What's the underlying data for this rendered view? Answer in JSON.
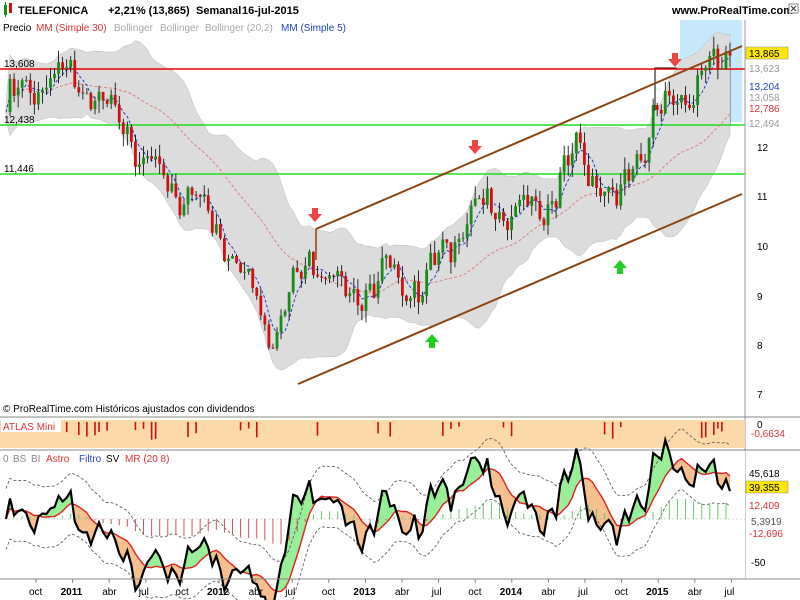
{
  "header": {
    "symbol": "TELEFONICA",
    "change": "+2,21% (13,865)",
    "period": "Semanal",
    "date": "16-jul-2015",
    "website": "www.ProRealTime.com"
  },
  "price_panel": {
    "tabs": [
      "Precio",
      "MM (Simple 30)",
      "Bollinger",
      "Bollinger",
      "Bollinger (20,2)",
      "MM (Simple 5)"
    ],
    "copyright": "© ProRealTime.com Históricos ajustados con dividendos",
    "left_levels": [
      "13,608",
      "12,438",
      "11,446"
    ],
    "right_tags": [
      "13,865",
      "13,623",
      "13,204",
      "13,058",
      "12,786",
      "12,494"
    ],
    "axis_labels": [
      "7",
      "8",
      "9",
      "10",
      "11",
      "12"
    ]
  },
  "atlas_panel": {
    "label": "ATLAS Mini",
    "value": "-0,6634",
    "zero": "0"
  },
  "osc_panel": {
    "tabs": [
      "0",
      "BS",
      "BI",
      "Astro",
      "Filtro",
      "SV",
      "MR (20 8)"
    ],
    "right_tags": [
      "45,618",
      "39,355",
      "12,409",
      "5,3919",
      "-12,696"
    ],
    "axis_labels": [
      "-50"
    ]
  },
  "x_axis": {
    "labels": [
      "oct",
      "2011",
      "abr",
      "jul",
      "oct",
      "2012",
      "abr",
      "jul",
      "oct",
      "2013",
      "abr",
      "jul",
      "oct",
      "2014",
      "abr",
      "jul",
      "oct",
      "2015",
      "abr",
      "jul"
    ]
  },
  "colors": {
    "candle_up": "#1a8a1a",
    "candle_down": "#cc1111",
    "ma30": "#e08080",
    "ma5": "#2244cc",
    "bollinger_fill": "#dcdcdc",
    "red_level": "#ee0000",
    "green_level": "#22dd22",
    "channel": "#8b4513",
    "highlight_box": "#c6e8fa",
    "atlas_bg": "#fcd9a8",
    "osc_green": "#99ee99",
    "osc_orange": "#f6c090",
    "osc_ma": "#dd2222"
  },
  "chart_data": {
    "type": "candlestick",
    "title": "TELEFONICA",
    "x": [
      "2010-10",
      "2011-01",
      "2011-04",
      "2011-07",
      "2011-10",
      "2012-01",
      "2012-04",
      "2012-07",
      "2012-10",
      "2013-01",
      "2013-04",
      "2013-07",
      "2013-10",
      "2014-01",
      "2014-04",
      "2014-07",
      "2014-10",
      "2015-01",
      "2015-04",
      "2015-07"
    ],
    "close_approx": [
      12.9,
      13.4,
      13.3,
      12.6,
      11.3,
      11.0,
      9.8,
      8.3,
      9.9,
      9.0,
      9.4,
      9.2,
      10.6,
      10.8,
      10.7,
      11.9,
      10.8,
      12.6,
      13.2,
      13.865
    ],
    "ylim": [
      7,
      14
    ],
    "horizontal_levels": [
      {
        "value": 13.608,
        "color": "red"
      },
      {
        "value": 12.438,
        "color": "green"
      },
      {
        "value": 11.446,
        "color": "green"
      }
    ],
    "channel_lines": [
      {
        "from": [
          "2012-07",
          7.5
        ],
        "to": [
          "2015-07",
          11.1
        ]
      },
      {
        "from": [
          "2012-09",
          10.3
        ],
        "to": [
          "2015-07",
          14.3
        ]
      }
    ],
    "last_value": 13.865
  }
}
